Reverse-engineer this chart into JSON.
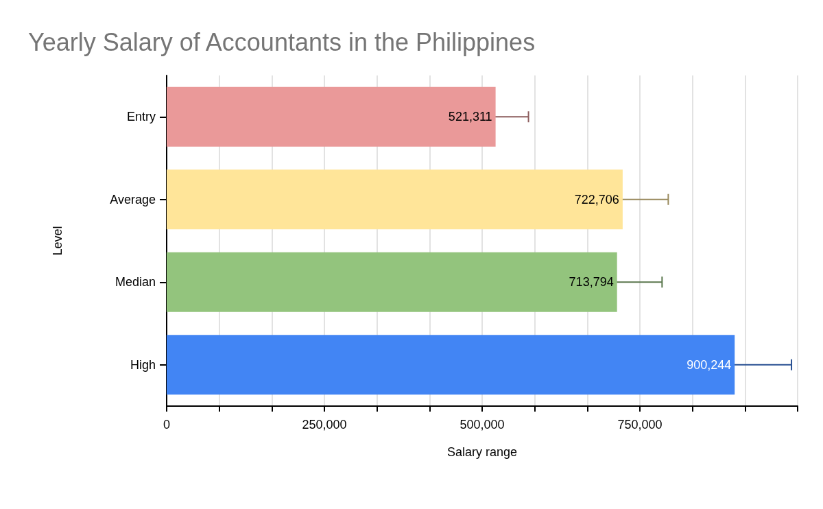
{
  "chart_data": {
    "type": "bar",
    "orientation": "horizontal",
    "title": "Yearly Salary of Accountants in the Philippines",
    "xlabel": "Salary range",
    "ylabel": "Level",
    "categories": [
      "Entry",
      "Average",
      "Median",
      "High"
    ],
    "values": [
      521311,
      722706,
      713794,
      900244
    ],
    "colors": [
      "#ea9999",
      "#ffe599",
      "#93c47d",
      "#4285f4"
    ],
    "errors": [
      52131,
      72271,
      71379,
      90024
    ],
    "value_labels": [
      "521,311",
      "722,706",
      "713,794",
      "900,244"
    ],
    "xlim": [
      0,
      1000000
    ],
    "xticks": [
      0,
      {
        "value": 83333.33,
        "label": null
      },
      {
        "value": 166666.67,
        "label": null
      },
      {
        "value": 250000,
        "label": "250,000"
      },
      {
        "value": 333333.33,
        "label": null
      },
      {
        "value": 416666.67,
        "label": null
      },
      {
        "value": 500000,
        "label": "500,000"
      },
      {
        "value": 583333.33,
        "label": null
      },
      {
        "value": 666666.67,
        "label": null
      },
      {
        "value": 750000,
        "label": "750,000"
      },
      {
        "value": 833333.33,
        "label": null
      },
      {
        "value": 916666.67,
        "label": null
      },
      {
        "value": 1000000,
        "label": null
      }
    ],
    "grid": "x"
  }
}
